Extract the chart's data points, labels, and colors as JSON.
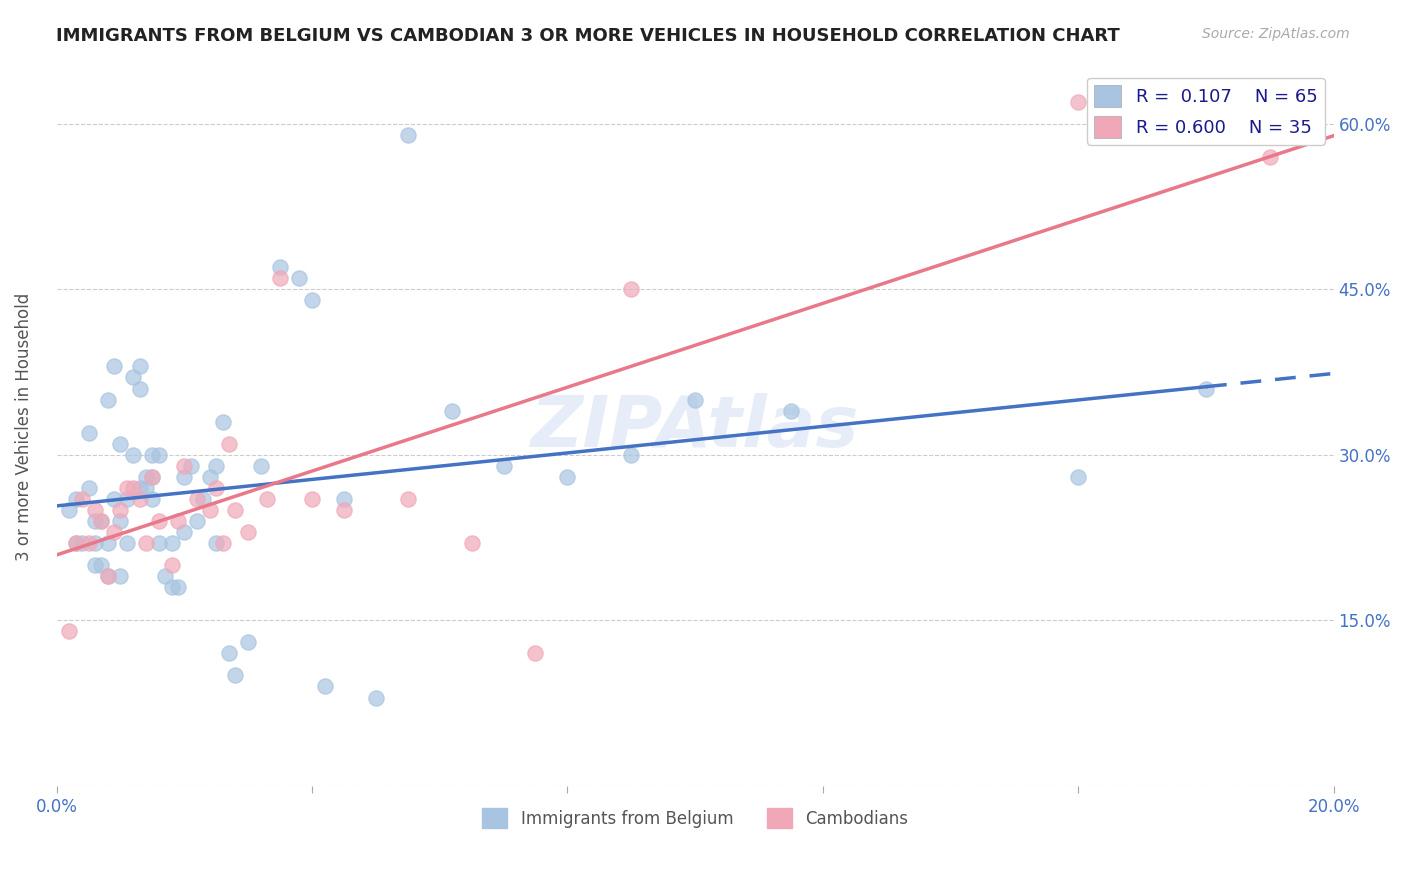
{
  "title": "IMMIGRANTS FROM BELGIUM VS CAMBODIAN 3 OR MORE VEHICLES IN HOUSEHOLD CORRELATION CHART",
  "source": "Source: ZipAtlas.com",
  "ylabel": "3 or more Vehicles in Household",
  "xmin": 0.0,
  "xmax": 0.2,
  "ymin": 0.0,
  "ymax": 0.65,
  "xticks": [
    0.0,
    0.04,
    0.08,
    0.12,
    0.16,
    0.2
  ],
  "xticklabels": [
    "0.0%",
    "",
    "",
    "",
    "",
    "20.0%"
  ],
  "ytick_vals": [
    0.0,
    0.15,
    0.3,
    0.45,
    0.6
  ],
  "ytick_labels_right": [
    "",
    "15.0%",
    "30.0%",
    "45.0%",
    "60.0%"
  ],
  "grid_color": "#cccccc",
  "background_color": "#ffffff",
  "belgium_color": "#a8c4e0",
  "cambodian_color": "#f0a8b8",
  "belgium_line_color": "#4472c4",
  "cambodian_line_color": "#e8788a",
  "R_belgium": 0.107,
  "N_belgium": 65,
  "R_cambodian": 0.6,
  "N_cambodian": 35,
  "legend_label_belgium": "Immigrants from Belgium",
  "legend_label_cambodian": "Cambodians",
  "belgium_scatter_x": [
    0.002,
    0.003,
    0.003,
    0.004,
    0.005,
    0.005,
    0.006,
    0.006,
    0.006,
    0.007,
    0.007,
    0.008,
    0.008,
    0.008,
    0.009,
    0.009,
    0.01,
    0.01,
    0.01,
    0.011,
    0.011,
    0.012,
    0.012,
    0.013,
    0.013,
    0.013,
    0.014,
    0.014,
    0.015,
    0.015,
    0.015,
    0.016,
    0.016,
    0.017,
    0.018,
    0.018,
    0.019,
    0.02,
    0.02,
    0.021,
    0.022,
    0.023,
    0.024,
    0.025,
    0.025,
    0.026,
    0.027,
    0.028,
    0.03,
    0.032,
    0.035,
    0.038,
    0.04,
    0.042,
    0.045,
    0.05,
    0.055,
    0.062,
    0.07,
    0.08,
    0.09,
    0.1,
    0.115,
    0.16,
    0.18
  ],
  "belgium_scatter_y": [
    0.25,
    0.22,
    0.26,
    0.22,
    0.27,
    0.32,
    0.2,
    0.22,
    0.24,
    0.2,
    0.24,
    0.19,
    0.22,
    0.35,
    0.26,
    0.38,
    0.19,
    0.24,
    0.31,
    0.22,
    0.26,
    0.3,
    0.37,
    0.27,
    0.36,
    0.38,
    0.27,
    0.28,
    0.26,
    0.28,
    0.3,
    0.22,
    0.3,
    0.19,
    0.18,
    0.22,
    0.18,
    0.23,
    0.28,
    0.29,
    0.24,
    0.26,
    0.28,
    0.29,
    0.22,
    0.33,
    0.12,
    0.1,
    0.13,
    0.29,
    0.47,
    0.46,
    0.44,
    0.09,
    0.26,
    0.08,
    0.59,
    0.34,
    0.29,
    0.28,
    0.3,
    0.35,
    0.34,
    0.28,
    0.36
  ],
  "cambodian_scatter_x": [
    0.002,
    0.003,
    0.004,
    0.005,
    0.006,
    0.007,
    0.008,
    0.009,
    0.01,
    0.011,
    0.012,
    0.013,
    0.014,
    0.015,
    0.016,
    0.018,
    0.019,
    0.02,
    0.022,
    0.024,
    0.025,
    0.026,
    0.027,
    0.028,
    0.03,
    0.033,
    0.035,
    0.04,
    0.045,
    0.055,
    0.065,
    0.075,
    0.09,
    0.16,
    0.19
  ],
  "cambodian_scatter_y": [
    0.14,
    0.22,
    0.26,
    0.22,
    0.25,
    0.24,
    0.19,
    0.23,
    0.25,
    0.27,
    0.27,
    0.26,
    0.22,
    0.28,
    0.24,
    0.2,
    0.24,
    0.29,
    0.26,
    0.25,
    0.27,
    0.22,
    0.31,
    0.25,
    0.23,
    0.26,
    0.46,
    0.26,
    0.25,
    0.26,
    0.22,
    0.12,
    0.45,
    0.62,
    0.57
  ]
}
